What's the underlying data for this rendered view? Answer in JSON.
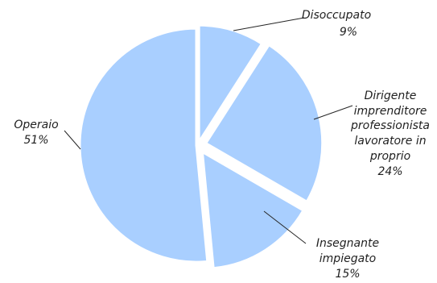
{
  "chart_data": {
    "type": "pie",
    "title": "",
    "colors": {
      "slice_fill": "#a9cfff",
      "slice_edge": "#ffffff",
      "label_text": "#1f1f1f",
      "leader_line": "#262626"
    },
    "exploded": true,
    "slices": [
      {
        "label": "Disoccupato",
        "value": 9,
        "value_label": "9%"
      },
      {
        "label": "Dirigente imprenditore professionista lavoratore in proprio",
        "label_lines": [
          "Dirigente",
          "imprenditore",
          "professionista",
          "lavoratore in",
          "proprio"
        ],
        "value": 24,
        "value_label": "24%"
      },
      {
        "label": "Insegnante impiegato",
        "label_lines": [
          "Insegnante",
          "impiegato"
        ],
        "value": 15,
        "value_label": "15%"
      },
      {
        "label": "Operaio",
        "value": 51,
        "value_label": "51%"
      }
    ]
  }
}
